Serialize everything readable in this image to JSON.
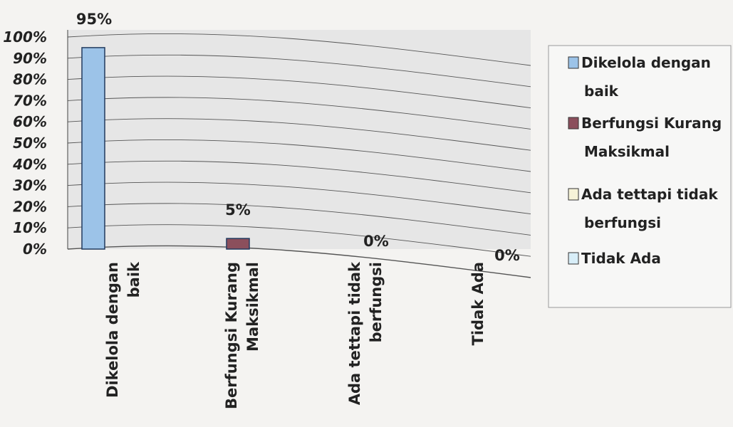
{
  "chart_data": {
    "type": "bar",
    "categories": [
      "Dikelola dengan baik",
      "Berfungsi Kurang Maksikmal",
      "Ada tettapi tidak berfungsi",
      "Tidak Ada"
    ],
    "category_label_lines": [
      [
        "Dikelola dengan",
        "baik"
      ],
      [
        "Berfungsi Kurang",
        "Maksikmal"
      ],
      [
        "Ada tettapi tidak",
        "berfungsi"
      ],
      [
        "Tidak Ada"
      ]
    ],
    "values": [
      95,
      5,
      0,
      0
    ],
    "data_labels": [
      "95%",
      "5%",
      "0%",
      "0%"
    ],
    "ylim": [
      0,
      100
    ],
    "ytick_labels": [
      "0%",
      "10%",
      "20%",
      "30%",
      "40%",
      "50%",
      "60%",
      "70%",
      "80%",
      "90%",
      "100%"
    ],
    "grid": true,
    "legend_position": "right",
    "legend": [
      {
        "lines": [
          "Dikelola dengan",
          "baik"
        ],
        "color": "#9cc3e8"
      },
      {
        "lines": [
          "Berfungsi Kurang",
          "Maksikmal"
        ],
        "color": "#8b4f5c"
      },
      {
        "lines": [
          "Ada tettapi tidak",
          "berfungsi"
        ],
        "color": "#f6f3d8"
      },
      {
        "lines": [
          "Tidak Ada"
        ],
        "color": "#d8eef8"
      }
    ],
    "colors": {
      "bar_fill": [
        "#9cc3e8",
        "#8b4f5c",
        "#f6f3d8",
        "#d8eef8"
      ],
      "bar_stroke": "#223a5e",
      "plot_background": "#e6e6e6",
      "gridline": "#555555",
      "text": "#222222"
    }
  }
}
